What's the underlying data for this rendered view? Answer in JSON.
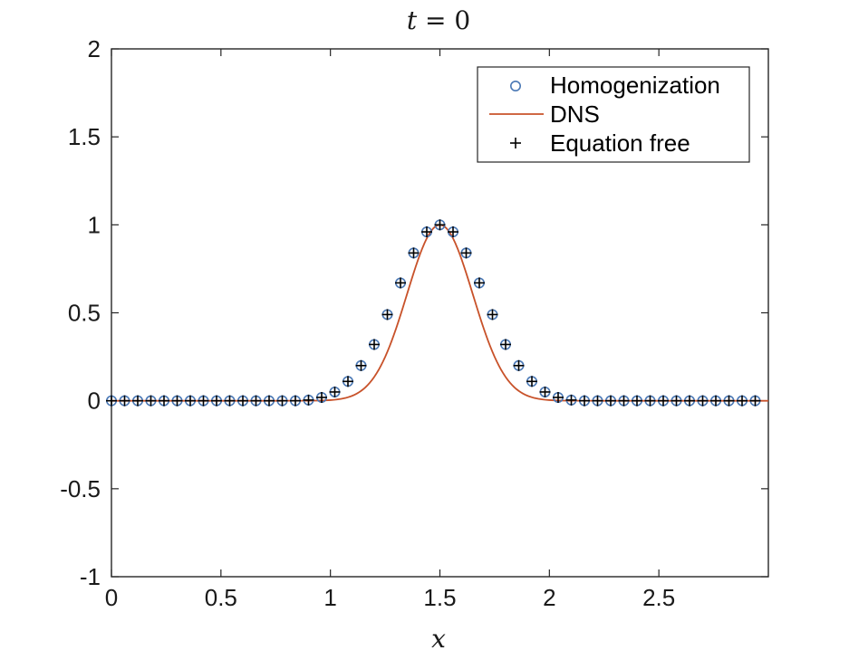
{
  "chart_data": {
    "type": "line",
    "title": "t = 0",
    "xlabel": "x",
    "ylabel": "",
    "xlim": [
      0,
      3
    ],
    "ylim": [
      -1,
      2
    ],
    "xticks": [
      0,
      0.5,
      1,
      1.5,
      2,
      2.5
    ],
    "xtick_labels": [
      "0",
      "0.5",
      "1",
      "1.5",
      "2",
      "2.5"
    ],
    "yticks": [
      -1,
      -0.5,
      0,
      0.5,
      1,
      1.5,
      2
    ],
    "ytick_labels": [
      "-1",
      "-0.5",
      "0",
      "0.5",
      "1",
      "1.5",
      "2"
    ],
    "legend_position": "top-right",
    "series": [
      {
        "name": "Homogenization",
        "marker": "circle",
        "color": "#4a78b5",
        "x": [
          0,
          0.06,
          0.12,
          0.18,
          0.24,
          0.3,
          0.36,
          0.42,
          0.48,
          0.54,
          0.6,
          0.66,
          0.72,
          0.78,
          0.84,
          0.9,
          0.96,
          1.02,
          1.08,
          1.14,
          1.2,
          1.26,
          1.32,
          1.38,
          1.44,
          1.5,
          1.56,
          1.62,
          1.68,
          1.74,
          1.8,
          1.86,
          1.92,
          1.98,
          2.04,
          2.1,
          2.16,
          2.22,
          2.28,
          2.34,
          2.4,
          2.46,
          2.52,
          2.58,
          2.64,
          2.7,
          2.76,
          2.82,
          2.88,
          2.94
        ],
        "y": [
          0,
          0,
          0,
          0,
          0,
          0,
          0,
          0,
          0,
          0,
          0,
          0,
          0,
          0,
          0,
          0.004,
          0.019,
          0.05,
          0.11,
          0.2,
          0.32,
          0.49,
          0.67,
          0.84,
          0.96,
          1.0,
          0.96,
          0.84,
          0.67,
          0.49,
          0.32,
          0.2,
          0.11,
          0.05,
          0.019,
          0.004,
          0,
          0,
          0,
          0,
          0,
          0,
          0,
          0,
          0,
          0,
          0,
          0,
          0,
          0
        ]
      },
      {
        "name": "DNS",
        "marker": "line",
        "color": "#c8522a",
        "center": 1.5,
        "width": 0.15,
        "amplitude": 1.0
      },
      {
        "name": "Equation free",
        "marker": "plus",
        "color": "#000000",
        "x": [
          0,
          0.06,
          0.12,
          0.18,
          0.24,
          0.3,
          0.36,
          0.42,
          0.48,
          0.54,
          0.6,
          0.66,
          0.72,
          0.78,
          0.84,
          0.9,
          0.96,
          1.02,
          1.08,
          1.14,
          1.2,
          1.26,
          1.32,
          1.38,
          1.44,
          1.5,
          1.56,
          1.62,
          1.68,
          1.74,
          1.8,
          1.86,
          1.92,
          1.98,
          2.04,
          2.1,
          2.16,
          2.22,
          2.28,
          2.34,
          2.4,
          2.46,
          2.52,
          2.58,
          2.64,
          2.7,
          2.76,
          2.82,
          2.88,
          2.94
        ],
        "y": [
          0,
          0,
          0,
          0,
          0,
          0,
          0,
          0,
          0,
          0,
          0,
          0,
          0,
          0,
          0,
          0.004,
          0.019,
          0.05,
          0.11,
          0.2,
          0.32,
          0.49,
          0.67,
          0.84,
          0.96,
          1.0,
          0.96,
          0.84,
          0.67,
          0.49,
          0.32,
          0.2,
          0.11,
          0.05,
          0.019,
          0.004,
          0,
          0,
          0,
          0,
          0,
          0,
          0,
          0,
          0,
          0,
          0,
          0,
          0,
          0
        ]
      }
    ]
  },
  "title_parts": {
    "var": "t",
    "rest": " = 0"
  },
  "legend_labels": [
    "Homogenization",
    "DNS",
    "Equation free"
  ]
}
